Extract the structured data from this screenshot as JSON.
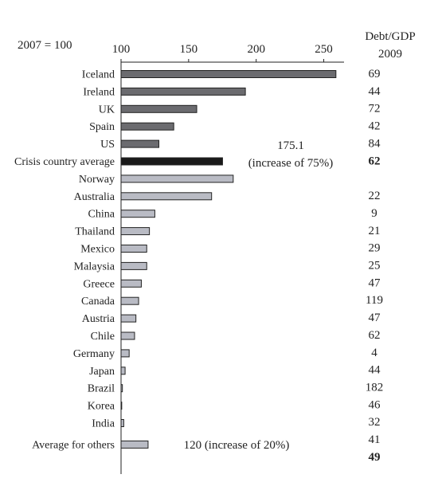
{
  "chart_data": {
    "type": "bar",
    "orientation": "horizontal",
    "index_label": "2007 = 100",
    "xlim": [
      100,
      265
    ],
    "xticks": [
      100,
      150,
      200,
      250
    ],
    "right_header": [
      "Debt/GDP",
      "2009"
    ],
    "colors": {
      "crisis_bar": "#6b6b6f",
      "average_bar": "#1a1a1a",
      "other_bar": "#b9bbc4",
      "stroke": "#222222"
    },
    "categories": [
      "Iceland",
      "Ireland",
      "UK",
      "Spain",
      "US",
      "Crisis country average",
      "Norway",
      "Australia",
      "China",
      "Thailand",
      "Mexico",
      "Malaysia",
      "Greece",
      "Canada",
      "Austria",
      "Chile",
      "Germany",
      "Japan",
      "Brazil",
      "Korea",
      "India",
      "Average for others"
    ],
    "groups": [
      "crisis",
      "crisis",
      "crisis",
      "crisis",
      "crisis",
      "crisis_average",
      "other",
      "other",
      "other",
      "other",
      "other",
      "other",
      "other",
      "other",
      "other",
      "other",
      "other",
      "other",
      "other",
      "other",
      "other",
      "other_average"
    ],
    "values": [
      259,
      192,
      156,
      139,
      128,
      175.1,
      183,
      167,
      125,
      121,
      119,
      119,
      115,
      113,
      111,
      110,
      106,
      103,
      101,
      100.5,
      102,
      120
    ],
    "debt_gdp_2009": [
      {
        "text": "69",
        "bold": false
      },
      {
        "text": "44",
        "bold": false
      },
      {
        "text": "72",
        "bold": false
      },
      {
        "text": "42",
        "bold": false
      },
      {
        "text": "84",
        "bold": false
      },
      {
        "text": "62",
        "bold": true
      },
      {
        "text": "22",
        "bold": false
      },
      {
        "text": "9",
        "bold": false
      },
      {
        "text": "21",
        "bold": false
      },
      {
        "text": "29",
        "bold": false
      },
      {
        "text": "25",
        "bold": false
      },
      {
        "text": "47",
        "bold": false
      },
      {
        "text": "119",
        "bold": false
      },
      {
        "text": "47",
        "bold": false
      },
      {
        "text": "62",
        "bold": false
      },
      {
        "text": "4",
        "bold": false
      },
      {
        "text": "44",
        "bold": false
      },
      {
        "text": "182",
        "bold": false
      },
      {
        "text": "46",
        "bold": false
      },
      {
        "text": "32",
        "bold": false
      },
      {
        "text": "41",
        "bold": false
      },
      {
        "text": "49",
        "bold": true
      }
    ],
    "annotations": [
      {
        "lines": [
          "175.1",
          "(increase of 75%)"
        ]
      },
      {
        "lines": [
          "120 (increase of 20%)"
        ]
      }
    ]
  }
}
